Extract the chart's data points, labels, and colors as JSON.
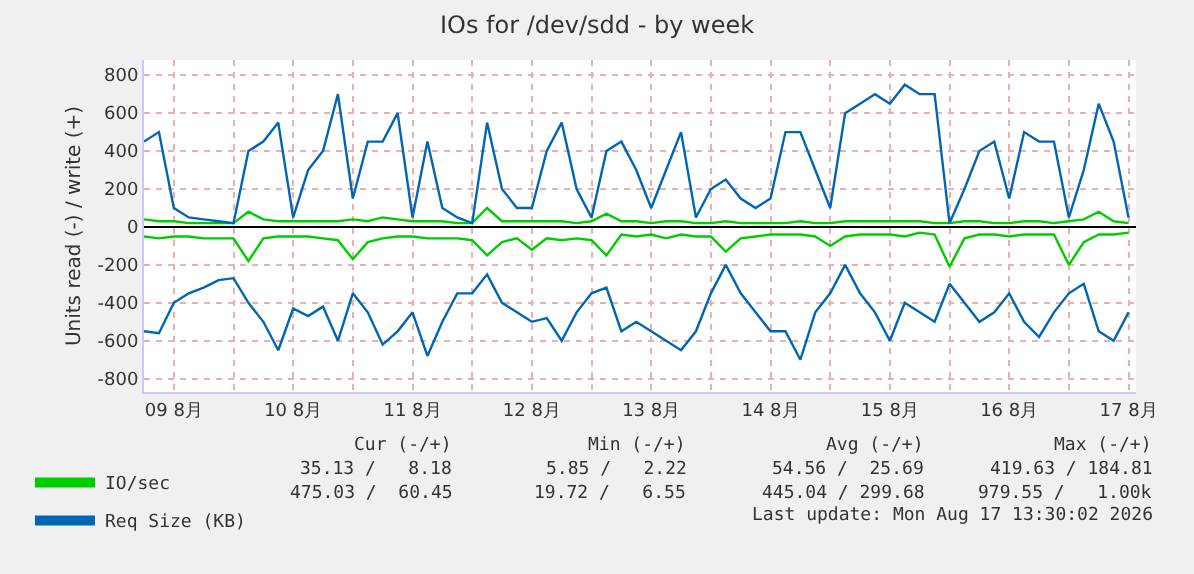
{
  "chart_data": {
    "type": "line",
    "title": "IOs for /dev/sdd - by week",
    "ylabel": "Units read (-) / write (+)",
    "x": [
      "2026-08-09T06:00",
      "2026-08-09T09:00",
      "2026-08-09T12:00",
      "2026-08-09T15:00",
      "2026-08-09T18:00",
      "2026-08-09T21:00",
      "2026-08-10T00:00",
      "2026-08-10T03:00",
      "2026-08-10T06:00",
      "2026-08-10T09:00",
      "2026-08-10T12:00",
      "2026-08-10T15:00",
      "2026-08-10T18:00",
      "2026-08-10T21:00",
      "2026-08-11T00:00",
      "2026-08-11T03:00",
      "2026-08-11T06:00",
      "2026-08-11T09:00",
      "2026-08-11T12:00",
      "2026-08-11T15:00",
      "2026-08-11T18:00",
      "2026-08-11T21:00",
      "2026-08-12T00:00",
      "2026-08-12T03:00",
      "2026-08-12T06:00",
      "2026-08-12T09:00",
      "2026-08-12T12:00",
      "2026-08-12T15:00",
      "2026-08-12T18:00",
      "2026-08-12T21:00",
      "2026-08-13T00:00",
      "2026-08-13T03:00",
      "2026-08-13T06:00",
      "2026-08-13T09:00",
      "2026-08-13T12:00",
      "2026-08-13T15:00",
      "2026-08-13T18:00",
      "2026-08-13T21:00",
      "2026-08-14T00:00",
      "2026-08-14T03:00",
      "2026-08-14T06:00",
      "2026-08-14T09:00",
      "2026-08-14T12:00",
      "2026-08-14T15:00",
      "2026-08-14T18:00",
      "2026-08-14T21:00",
      "2026-08-15T00:00",
      "2026-08-15T03:00",
      "2026-08-15T06:00",
      "2026-08-15T09:00",
      "2026-08-15T12:00",
      "2026-08-15T15:00",
      "2026-08-15T18:00",
      "2026-08-15T21:00",
      "2026-08-16T00:00",
      "2026-08-16T03:00",
      "2026-08-16T06:00",
      "2026-08-16T09:00",
      "2026-08-16T12:00",
      "2026-08-16T15:00",
      "2026-08-16T18:00",
      "2026-08-16T21:00",
      "2026-08-17T00:00",
      "2026-08-17T03:00",
      "2026-08-17T06:00",
      "2026-08-17T09:00",
      "2026-08-17T12:00"
    ],
    "series": [
      {
        "name": "IO/sec",
        "color": "#00cc00",
        "values": [
          40,
          30,
          30,
          20,
          20,
          20,
          20,
          80,
          40,
          30,
          30,
          30,
          30,
          30,
          40,
          30,
          50,
          40,
          30,
          30,
          30,
          20,
          20,
          100,
          30,
          30,
          30,
          30,
          30,
          20,
          30,
          70,
          30,
          30,
          20,
          30,
          30,
          20,
          20,
          30,
          20,
          20,
          20,
          20,
          30,
          20,
          20,
          30,
          30,
          30,
          30,
          30,
          30,
          20,
          20,
          30,
          30,
          20,
          20,
          30,
          30,
          20,
          30,
          40,
          80,
          30,
          20
        ]
      },
      {
        "color": "#00cc00",
        "values": [
          -50,
          -60,
          -50,
          -50,
          -60,
          -60,
          -60,
          -180,
          -60,
          -50,
          -50,
          -50,
          -60,
          -70,
          -170,
          -80,
          -60,
          -50,
          -50,
          -60,
          -60,
          -60,
          -70,
          -150,
          -80,
          -60,
          -120,
          -60,
          -70,
          -60,
          -70,
          -150,
          -40,
          -50,
          -40,
          -60,
          -40,
          -50,
          -50,
          -130,
          -60,
          -50,
          -40,
          -40,
          -40,
          -50,
          -100,
          -50,
          -40,
          -40,
          -40,
          -50,
          -30,
          -40,
          -210,
          -60,
          -40,
          -40,
          -50,
          -40,
          -40,
          -40,
          -200,
          -80,
          -40,
          -40,
          -30
        ]
      },
      {
        "name": "Req Size (KB)",
        "color": "#0066b3",
        "values": [
          450,
          500,
          100,
          50,
          40,
          30,
          20,
          400,
          450,
          550,
          50,
          300,
          400,
          700,
          150,
          450,
          450,
          600,
          50,
          450,
          100,
          50,
          20,
          550,
          200,
          100,
          100,
          400,
          550,
          200,
          50,
          400,
          450,
          300,
          100,
          300,
          500,
          50,
          200,
          250,
          150,
          100,
          150,
          500,
          500,
          300,
          100,
          600,
          650,
          700,
          650,
          750,
          700,
          700,
          20,
          200,
          400,
          450,
          150,
          500,
          450,
          450,
          50,
          300,
          650,
          450,
          50
        ]
      },
      {
        "color": "#0066b3",
        "values": [
          -550,
          -560,
          -400,
          -350,
          -320,
          -280,
          -270,
          -400,
          -500,
          -650,
          -430,
          -470,
          -420,
          -600,
          -350,
          -450,
          -620,
          -550,
          -450,
          -680,
          -500,
          -350,
          -350,
          -250,
          -400,
          -450,
          -500,
          -480,
          -600,
          -450,
          -350,
          -320,
          -550,
          -500,
          -550,
          -600,
          -650,
          -550,
          -350,
          -200,
          -350,
          -450,
          -550,
          -550,
          -700,
          -450,
          -350,
          -200,
          -350,
          -450,
          -600,
          -400,
          -450,
          -500,
          -300,
          -400,
          -500,
          -450,
          -350,
          -500,
          -580,
          -450,
          -350,
          -300,
          -550,
          -600,
          -450
        ]
      }
    ],
    "xlim": [
      "2026-08-09T06:00",
      "2026-08-17T13:30"
    ],
    "xticks": [
      {
        "value": "2026-08-09T12:00",
        "label": "09 8月"
      },
      {
        "value": "2026-08-10T00:00",
        "label": null
      },
      {
        "value": "2026-08-10T12:00",
        "label": "10 8月"
      },
      {
        "value": "2026-08-11T00:00",
        "label": null
      },
      {
        "value": "2026-08-11T12:00",
        "label": "11 8月"
      },
      {
        "value": "2026-08-12T00:00",
        "label": null
      },
      {
        "value": "2026-08-12T12:00",
        "label": "12 8月"
      },
      {
        "value": "2026-08-13T00:00",
        "label": null
      },
      {
        "value": "2026-08-13T12:00",
        "label": "13 8月"
      },
      {
        "value": "2026-08-14T00:00",
        "label": null
      },
      {
        "value": "2026-08-14T12:00",
        "label": "14 8月"
      },
      {
        "value": "2026-08-15T00:00",
        "label": null
      },
      {
        "value": "2026-08-15T12:00",
        "label": "15 8月"
      },
      {
        "value": "2026-08-16T00:00",
        "label": null
      },
      {
        "value": "2026-08-16T12:00",
        "label": "16 8月"
      },
      {
        "value": "2026-08-17T00:00",
        "label": null
      },
      {
        "value": "2026-08-17T12:00",
        "label": "17 8月"
      }
    ],
    "ylim": [
      -870,
      880
    ],
    "yticks": [
      -800,
      -600,
      -400,
      -200,
      0,
      200,
      400,
      600,
      800
    ],
    "grid": true,
    "legend": "bottom left",
    "marker": "none",
    "line_style": "solid",
    "annotations": [
      "Cur (-/+)",
      "Min (-/+)",
      "Avg (-/+)",
      "Max (-/+)",
      "35.13 /   8.18",
      "5.85 /   2.22",
      "54.56 /  25.69",
      "419.63 / 184.81",
      "475.03 /  60.45",
      "19.72 /   6.55",
      "445.04 / 299.68",
      "979.55 /   1.00k",
      "Last update: Mon Aug 17 13:30:02 2026"
    ]
  }
}
